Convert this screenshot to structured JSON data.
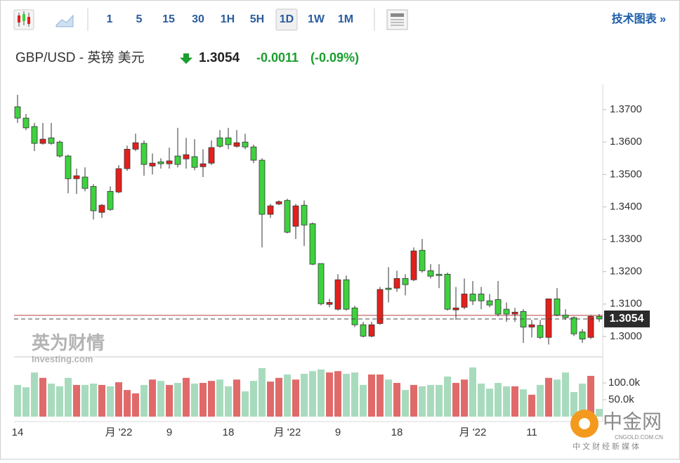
{
  "toolbar": {
    "intervals": [
      "1",
      "5",
      "15",
      "30",
      "1H",
      "5H",
      "1D",
      "1W",
      "1M"
    ],
    "selected": "1D",
    "link": "技术图表 »"
  },
  "header": {
    "pair": "GBP/USD - 英镑 美元",
    "price": "1.3054",
    "change": "-0.0011",
    "change_pct": "(-0.09%)"
  },
  "watermark": {
    "brand": "英为财情",
    "site": "Investing.com"
  },
  "logo": {
    "name": "中金网",
    "domain": "CNGOLD.COM.CN",
    "tagline": "中文财经新媒体"
  },
  "chart_data": {
    "type": "candlestick",
    "categories": [
      "14",
      null,
      null,
      null,
      null,
      null,
      null,
      null,
      null,
      null,
      null,
      null,
      "月 '22",
      null,
      null,
      null,
      null,
      null,
      "9",
      null,
      null,
      null,
      null,
      null,
      null,
      "18",
      null,
      null,
      null,
      null,
      null,
      null,
      "月 '22",
      null,
      null,
      null,
      null,
      null,
      "9",
      null,
      null,
      null,
      null,
      null,
      null,
      "18",
      null,
      null,
      null,
      null,
      null,
      null,
      null,
      null,
      "月 '22",
      null,
      null,
      null,
      null,
      null,
      null,
      "11",
      null,
      null,
      null,
      null,
      null,
      null,
      null,
      null
    ],
    "open": [
      1.3709,
      1.3674,
      1.3648,
      1.3596,
      1.3613,
      1.36,
      1.3557,
      1.3487,
      1.3492,
      1.3463,
      1.3383,
      1.3448,
      1.3446,
      1.3518,
      1.3578,
      1.3596,
      1.3526,
      1.3539,
      1.3533,
      1.3557,
      1.3548,
      1.3555,
      1.3524,
      1.3535,
      1.3613,
      1.3613,
      1.3587,
      1.36,
      1.3585,
      1.3544,
      1.3377,
      1.3409,
      1.342,
      1.334,
      1.3405,
      1.3348,
      1.3225,
      1.3099,
      1.3084,
      1.3175,
      1.3088,
      1.3036,
      1.3001,
      1.304,
      1.3149,
      1.3149,
      1.3179,
      1.3175,
      1.3266,
      1.3203,
      1.3192,
      1.3192,
      1.3082,
      1.309,
      1.3131,
      1.3131,
      1.311,
      1.3114,
      1.3084,
      1.3069,
      1.3077,
      1.3029,
      1.3034,
      1.2997,
      1.3116,
      1.3066,
      1.3058,
      1.3014,
      1.2997,
      1.3062
    ],
    "high": [
      1.3746,
      1.3687,
      1.3659,
      1.3659,
      1.3659,
      1.3605,
      1.3561,
      1.3518,
      1.3522,
      1.347,
      1.3409,
      1.3463,
      1.3529,
      1.3589,
      1.3626,
      1.3605,
      1.3565,
      1.355,
      1.3583,
      1.3644,
      1.3613,
      1.3609,
      1.3578,
      1.3605,
      1.3637,
      1.3644,
      1.3637,
      1.3626,
      1.3592,
      1.355,
      1.3409,
      1.342,
      1.3425,
      1.3409,
      1.342,
      1.3352,
      1.3225,
      1.3116,
      1.3192,
      1.3188,
      1.3095,
      1.3045,
      1.3045,
      1.3153,
      1.3214,
      1.3203,
      1.3192,
      1.3275,
      1.3301,
      1.3223,
      1.3223,
      1.3197,
      1.3153,
      1.3179,
      1.3171,
      1.3153,
      1.3131,
      1.3171,
      1.3105,
      1.3088,
      1.3084,
      1.3051,
      1.3051,
      1.3116,
      1.3149,
      1.3084,
      1.3062,
      1.3023,
      1.3066,
      1.3069
    ],
    "low": [
      1.3659,
      1.3637,
      1.3572,
      1.3592,
      1.3592,
      1.3552,
      1.3442,
      1.344,
      1.3448,
      1.3361,
      1.3366,
      1.3388,
      1.3442,
      1.3511,
      1.3572,
      1.3496,
      1.35,
      1.3518,
      1.3518,
      1.3522,
      1.3518,
      1.3513,
      1.3492,
      1.3529,
      1.3583,
      1.3578,
      1.3583,
      1.3578,
      1.3535,
      1.3275,
      1.3366,
      1.3405,
      1.3318,
      1.3301,
      1.3279,
      1.322,
      1.3096,
      1.309,
      1.308,
      1.308,
      1.3029,
      1.2997,
      1.2997,
      1.3036,
      1.3105,
      1.3138,
      1.3127,
      1.3171,
      1.3197,
      1.3179,
      1.3149,
      1.308,
      1.3051,
      1.3084,
      1.3097,
      1.3084,
      1.309,
      1.3062,
      1.3045,
      1.3045,
      1.298,
      1.2997,
      1.2992,
      1.2975,
      1.3062,
      1.3051,
      1.3001,
      1.298,
      1.2992,
      1.3045
    ],
    "close": [
      1.3674,
      1.3644,
      1.3596,
      1.3609,
      1.3596,
      1.3557,
      1.3487,
      1.3496,
      1.3457,
      1.3388,
      1.3405,
      1.3392,
      1.3518,
      1.3578,
      1.3598,
      1.3531,
      1.3535,
      1.3533,
      1.3542,
      1.3531,
      1.3561,
      1.3522,
      1.3533,
      1.3583,
      1.3587,
      1.3592,
      1.3598,
      1.3585,
      1.3544,
      1.3377,
      1.3403,
      1.3416,
      1.3322,
      1.3403,
      1.3344,
      1.3223,
      1.3101,
      1.3105,
      1.3175,
      1.3084,
      1.3036,
      1.3001,
      1.3036,
      1.3145,
      1.3145,
      1.3179,
      1.316,
      1.3264,
      1.3203,
      1.3186,
      1.3188,
      1.3084,
      1.3088,
      1.3131,
      1.311,
      1.311,
      1.3097,
      1.3069,
      1.3069,
      1.3075,
      1.3029,
      1.3036,
      1.2997,
      1.3116,
      1.3066,
      1.3058,
      1.3008,
      1.2992,
      1.3062,
      1.3054
    ],
    "volume": [
      94000,
      87000,
      131000,
      115000,
      98000,
      90000,
      115000,
      94000,
      94000,
      98000,
      94000,
      90000,
      102000,
      79000,
      69000,
      94000,
      110000,
      106000,
      94000,
      100000,
      115000,
      98000,
      100000,
      106000,
      110000,
      90000,
      110000,
      75000,
      106000,
      144000,
      104000,
      115000,
      125000,
      110000,
      127000,
      135000,
      140000,
      131000,
      135000,
      127000,
      131000,
      94000,
      125000,
      125000,
      110000,
      100000,
      79000,
      94000,
      90000,
      94000,
      94000,
      119000,
      100000,
      110000,
      146000,
      98000,
      83000,
      100000,
      90000,
      90000,
      81000,
      65000,
      94000,
      115000,
      110000,
      131000,
      73000,
      98000,
      121000,
      23000
    ],
    "up_color": "#e3201b",
    "down_color": "#3fd23f",
    "volume_up_color": "#e06a6a",
    "volume_down_color": "#a8dbbd",
    "ylim": [
      1.2939,
      1.3774
    ],
    "yticks": [
      {
        "value": 1.37,
        "label": "1.3700"
      },
      {
        "value": 1.36,
        "label": "1.3600"
      },
      {
        "value": 1.35,
        "label": "1.3500"
      },
      {
        "value": 1.34,
        "label": "1.3400"
      },
      {
        "value": 1.33,
        "label": "1.3300"
      },
      {
        "value": 1.32,
        "label": "1.3200"
      },
      {
        "value": 1.31,
        "label": "1.3100"
      },
      {
        "value": 1.3,
        "label": "1.3000"
      }
    ],
    "y2lim": [
      0,
      173000
    ],
    "y2ticks": [
      {
        "value": 100000,
        "label": "100.0k"
      },
      {
        "value": 50000,
        "label": "50.0k"
      }
    ],
    "last_price": 1.3054,
    "prev_close": 1.3065
  }
}
